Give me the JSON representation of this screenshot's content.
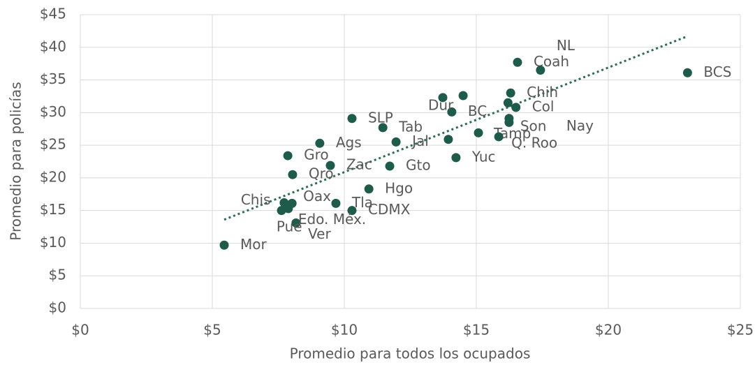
{
  "chart_data": {
    "type": "scatter",
    "x_label": "Promedio para todos los ocupados",
    "y_label": "Promedio para policías",
    "color": "#1e5b4a",
    "trend_color": "#2e6b4f",
    "grid": true,
    "xlim": [
      0,
      25
    ],
    "ylim": [
      0,
      45
    ],
    "xticks": [
      {
        "value": 0,
        "label": "$0"
      },
      {
        "value": 5,
        "label": "$5"
      },
      {
        "value": 10,
        "label": "$10"
      },
      {
        "value": 15,
        "label": "$15"
      },
      {
        "value": 20,
        "label": "$20"
      },
      {
        "value": 25,
        "label": "$25"
      }
    ],
    "yticks": [
      {
        "value": 0,
        "label": "$0"
      },
      {
        "value": 5,
        "label": "$5"
      },
      {
        "value": 10,
        "label": "$10"
      },
      {
        "value": 15,
        "label": "$15"
      },
      {
        "value": 20,
        "label": "$20"
      },
      {
        "value": 25,
        "label": "$25"
      },
      {
        "value": 30,
        "label": "$30"
      },
      {
        "value": 35,
        "label": "$35"
      },
      {
        "value": 40,
        "label": "$40"
      },
      {
        "value": 45,
        "label": "$45"
      }
    ],
    "x": [
      5.45,
      23.0,
      16.56,
      17.43,
      16.3,
      16.5,
      14.07,
      13.73,
      10.29,
      11.46,
      16.24,
      16.24,
      15.08,
      15.85,
      11.96,
      9.07,
      7.86,
      9.47,
      14.23,
      11.72,
      8.04,
      10.93,
      7.72,
      8.02,
      9.68,
      10.29,
      8.17,
      7.88,
      7.62,
      14.5,
      13.94,
      16.2
    ],
    "y": [
      9.7,
      36.1,
      37.7,
      36.5,
      33.0,
      30.8,
      30.1,
      32.3,
      29.1,
      27.7,
      29.1,
      28.5,
      26.9,
      26.3,
      25.5,
      25.3,
      23.4,
      21.9,
      23.1,
      21.8,
      20.5,
      18.3,
      16.2,
      16.1,
      16.1,
      15.0,
      13.1,
      15.3,
      15.0,
      32.6,
      25.9,
      31.5
    ],
    "labels": [
      "Mor",
      "BCS",
      "Coah",
      "NL",
      "Chih",
      "Col",
      "BC",
      "Dur",
      "SLP",
      "Tab",
      "Son",
      "Nay",
      "Tamp",
      "Q. Roo",
      "Jal",
      "Ags",
      "Gro",
      "Zac",
      "Yuc",
      "Gto",
      "Qro",
      "Hgo",
      "Chis",
      "Oax",
      "Tla",
      "CDMX",
      "Edo. Méx.",
      "Pue",
      "Ver",
      null,
      null,
      null
    ],
    "trendline": {
      "x": [
        5.45,
        23.0
      ],
      "y": [
        13.6,
        41.7
      ]
    }
  }
}
